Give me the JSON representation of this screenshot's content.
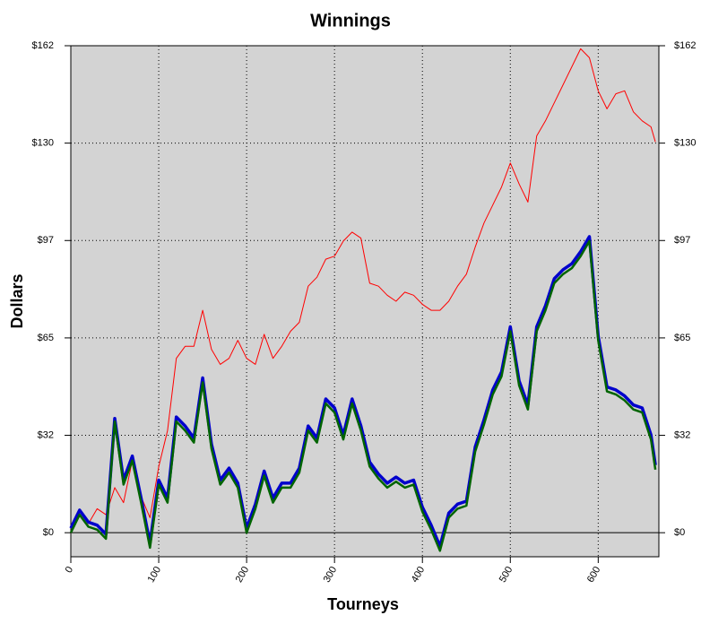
{
  "chart_data": {
    "type": "line",
    "title": "Winnings",
    "xlabel": "Tourneys",
    "ylabel": "Dollars",
    "x": [
      0,
      10,
      20,
      30,
      40,
      50,
      60,
      70,
      80,
      90,
      100,
      110,
      120,
      130,
      140,
      150,
      160,
      170,
      180,
      190,
      200,
      210,
      220,
      230,
      240,
      250,
      260,
      270,
      280,
      290,
      300,
      310,
      320,
      330,
      340,
      350,
      360,
      370,
      380,
      390,
      400,
      410,
      420,
      430,
      440,
      450,
      460,
      470,
      480,
      490,
      500,
      510,
      520,
      530,
      540,
      550,
      560,
      570,
      580,
      590,
      600,
      610,
      620,
      630,
      640,
      650,
      660,
      665
    ],
    "series": [
      {
        "color": "#ff0000",
        "values": [
          0,
          7,
          3,
          8,
          6,
          15,
          10,
          24,
          12,
          5,
          22,
          34,
          58,
          62,
          62,
          74,
          61,
          56,
          58,
          64,
          58,
          56,
          66,
          58,
          62,
          67,
          70,
          82,
          85,
          91,
          92,
          97,
          100,
          98,
          83,
          82,
          79,
          77,
          80,
          79,
          76,
          74,
          74,
          77,
          82,
          86,
          95,
          103,
          109,
          115,
          123,
          116,
          110,
          132,
          137,
          143,
          149,
          155,
          161,
          158,
          147,
          141,
          146,
          147,
          140,
          137,
          135,
          130
        ]
      },
      {
        "color": "#0000cc",
        "values": [
          1.5,
          7.5,
          3.5,
          2.5,
          -0.5,
          38,
          17.5,
          25.5,
          11.5,
          -3.5,
          17.5,
          11.5,
          38.5,
          35.5,
          31.5,
          51.5,
          29.5,
          17.5,
          21.5,
          16.5,
          1.5,
          9.5,
          20.5,
          11.5,
          16.5,
          16.5,
          21.5,
          35.5,
          31.5,
          44.5,
          41.5,
          32.5,
          44.5,
          35.5,
          23.5,
          19.5,
          16.5,
          18.5,
          16.5,
          17.5,
          8.5,
          2.5,
          -4.5,
          6.5,
          9.5,
          10.5,
          28.5,
          37.5,
          47.5,
          53.5,
          68.5,
          50.5,
          42.5,
          68.5,
          75.5,
          84.5,
          87.5,
          89.5,
          93.5,
          98.5,
          65.5,
          48.5,
          47.5,
          45.5,
          42.5,
          41.5,
          32.5,
          22.5
        ]
      },
      {
        "color": "#006400",
        "values": [
          0,
          6,
          2,
          1,
          -2,
          37,
          16,
          24,
          10,
          -5,
          16,
          10,
          37,
          34,
          30,
          50,
          28,
          16,
          20,
          15,
          0,
          8,
          19,
          10,
          15,
          15,
          20,
          34,
          30,
          43,
          40,
          31,
          43,
          34,
          22,
          18,
          15,
          17,
          15,
          16,
          7,
          1,
          -6,
          5,
          8,
          9,
          27,
          36,
          46,
          52,
          67,
          49,
          41,
          67,
          74,
          83,
          86,
          88,
          92,
          97,
          64,
          47,
          46,
          44,
          41,
          40,
          31,
          21
        ]
      }
    ],
    "xlim": [
      0,
      669
    ],
    "xticks": [
      0,
      100,
      200,
      300,
      400,
      500,
      600
    ],
    "ylim": [
      -8,
      162
    ],
    "yticks": [
      {
        "value": 0,
        "label": "$0"
      },
      {
        "value": 32.4,
        "label": "$32"
      },
      {
        "value": 64.8,
        "label": "$65"
      },
      {
        "value": 97.2,
        "label": "$97"
      },
      {
        "value": 129.6,
        "label": "$130"
      },
      {
        "value": 162,
        "label": "$162"
      }
    ],
    "grid": true
  }
}
